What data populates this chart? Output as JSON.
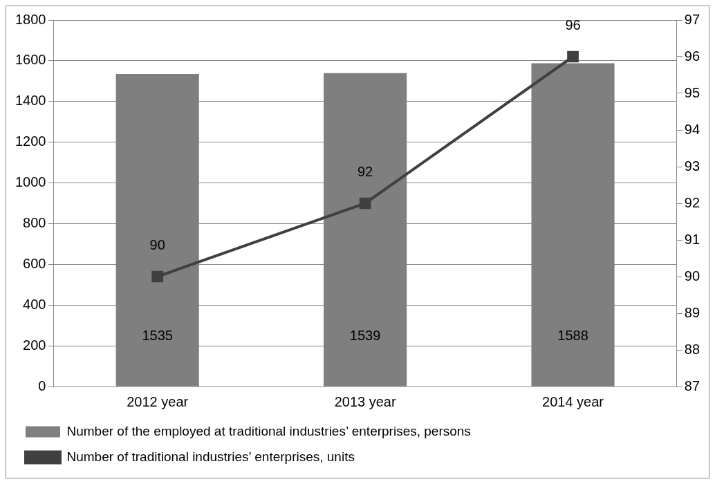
{
  "chart_data": {
    "type": "bar",
    "categories": [
      "2012 year",
      "2013 year",
      "2014 year"
    ],
    "series": [
      {
        "name": "Number of the employed at traditional industries’ enterprises, persons",
        "color": "#7f7f7f",
        "values": [
          1535,
          1539,
          1588
        ]
      },
      {
        "name": "Number of traditional industries’ enterprises, units",
        "type": "line",
        "axis": "y2",
        "color": "#404040",
        "values": [
          90,
          92,
          96
        ],
        "marker": "square",
        "line_style": "solid"
      }
    ],
    "ylim": [
      0,
      1800
    ],
    "yticks": [
      0,
      200,
      400,
      600,
      800,
      1000,
      1200,
      1400,
      1600,
      1800
    ],
    "y2lim": [
      87,
      97
    ],
    "y2ticks": [
      87,
      88,
      89,
      90,
      91,
      92,
      93,
      94,
      95,
      96,
      97
    ],
    "grid": "y",
    "legend": "bottom",
    "data_labels": true
  }
}
